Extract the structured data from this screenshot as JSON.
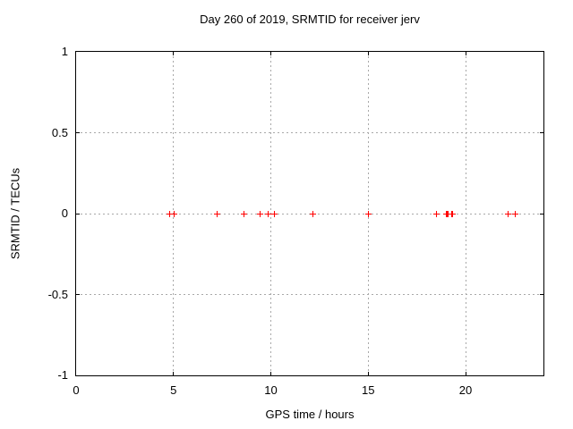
{
  "chart_data": {
    "type": "scatter",
    "title": "Day 260 of 2019, SRMTID for receiver jerv",
    "xlabel": "GPS time / hours",
    "ylabel": "SRMTID / TECUs",
    "xlim": [
      0,
      24
    ],
    "ylim": [
      -1,
      1
    ],
    "xtick_labels": [
      "0",
      "5",
      "10",
      "15",
      "20"
    ],
    "ytick_labels": [
      "-1",
      "-0.5",
      "0",
      "0.5",
      "1"
    ],
    "grid": "dotted",
    "legend": "none",
    "marker": "plus",
    "colors": {
      "marker": "#ff0000",
      "grid": "#a8a8a8",
      "border": "#000000",
      "text": "#000000",
      "background": "#ffffff"
    },
    "series": [
      {
        "name": "SRMTID",
        "x": [
          4.8,
          5.05,
          7.25,
          8.6,
          9.45,
          9.85,
          10.2,
          12.15,
          15.0,
          18.5,
          19.0,
          19.05,
          19.1,
          19.3,
          19.35,
          22.2,
          22.55
        ],
        "y": [
          0,
          0,
          0,
          0,
          0,
          0,
          0,
          0,
          0,
          0,
          0,
          0,
          0,
          0,
          0,
          0,
          0
        ]
      }
    ]
  }
}
